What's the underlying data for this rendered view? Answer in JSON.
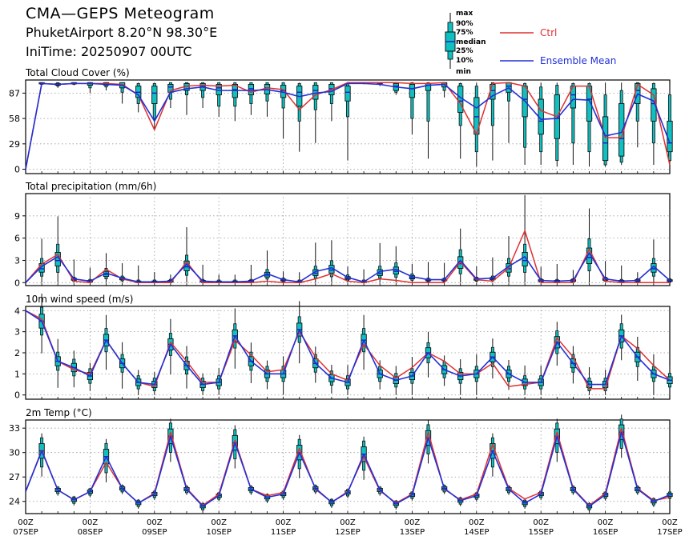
{
  "header": {
    "title": "CMA—GEPS Meteogram",
    "location": "PhuketAirport 8.20°N 98.30°E",
    "init_time": "IniTime: 20250907 00UTC"
  },
  "legend": {
    "box_labels": [
      "max",
      "90%",
      "75%",
      "median",
      "25%",
      "10%",
      "min"
    ],
    "ctrl_label": "Ctrl",
    "mean_label": "Ensemble Mean"
  },
  "colors": {
    "ctrl": "#e03030",
    "mean": "#2030d8",
    "box_fill": "#10c0c0",
    "median": "#1818c0"
  },
  "x_axis": {
    "tick_top": [
      "00Z",
      "00Z",
      "00Z",
      "00Z",
      "00Z",
      "00Z",
      "00Z",
      "00Z",
      "00Z",
      "00Z",
      "00Z"
    ],
    "tick_bottom": [
      "07SEP",
      "08SEP",
      "09SEP",
      "10SEP",
      "11SEP",
      "12SEP",
      "13SEP",
      "14SEP",
      "15SEP",
      "16SEP",
      "17SEP"
    ]
  },
  "chart_data": [
    {
      "type": "box",
      "title": "Total Cloud Cover (%)",
      "yticks": [
        0,
        29,
        58,
        87
      ],
      "ylim": [
        -5,
        102
      ],
      "grid": true,
      "x_step_hours": 6,
      "ctrl": [
        0,
        98,
        97,
        98,
        98,
        98,
        97,
        85,
        45,
        90,
        95,
        96,
        95,
        96,
        88,
        93,
        91,
        68,
        85,
        91,
        99,
        99,
        99,
        99,
        98,
        98,
        99,
        75,
        40,
        98,
        99,
        95,
        67,
        60,
        95,
        95,
        36,
        36,
        97,
        85,
        5
      ],
      "mean": [
        0,
        98,
        97,
        98,
        98,
        97,
        96,
        85,
        55,
        88,
        92,
        94,
        90,
        90,
        90,
        91,
        88,
        83,
        87,
        89,
        98,
        98,
        97,
        94,
        92,
        96,
        97,
        82,
        70,
        84,
        93,
        78,
        57,
        58,
        80,
        79,
        38,
        42,
        86,
        78,
        30
      ],
      "boxes": [
        null,
        {
          "min": 96,
          "p10": 97,
          "p25": 97.5,
          "median": 98,
          "p75": 99,
          "p90": 99,
          "max": 99
        },
        {
          "min": 93,
          "p10": 95,
          "p25": 96,
          "median": 97,
          "p75": 98,
          "p90": 99,
          "max": 99
        },
        {
          "min": 96,
          "p10": 97,
          "p25": 97.5,
          "median": 98,
          "p75": 99,
          "p90": 99,
          "max": 99
        },
        {
          "min": 87,
          "p10": 93,
          "p25": 96,
          "median": 98,
          "p75": 99,
          "p90": 99,
          "max": 99
        },
        {
          "min": 90,
          "p10": 94,
          "p25": 96,
          "median": 97,
          "p75": 99,
          "p90": 99,
          "max": 99
        },
        {
          "min": 75,
          "p10": 88,
          "p25": 93,
          "median": 96,
          "p75": 99,
          "p90": 99,
          "max": 99
        },
        {
          "min": 65,
          "p10": 75,
          "p25": 82,
          "median": 88,
          "p75": 95,
          "p90": 98,
          "max": 99
        },
        {
          "min": 45,
          "p10": 58,
          "p25": 75,
          "median": 87,
          "p75": 95,
          "p90": 98,
          "max": 99
        },
        {
          "min": 70,
          "p10": 80,
          "p25": 88,
          "median": 94,
          "p75": 97,
          "p90": 99,
          "max": 99
        },
        {
          "min": 62,
          "p10": 85,
          "p25": 90,
          "median": 95,
          "p75": 98,
          "p90": 99,
          "max": 99
        },
        {
          "min": 70,
          "p10": 82,
          "p25": 90,
          "median": 95,
          "p75": 98,
          "p90": 99,
          "max": 99
        },
        {
          "min": 60,
          "p10": 72,
          "p25": 85,
          "median": 93,
          "p75": 97,
          "p90": 99,
          "max": 99
        },
        {
          "min": 55,
          "p10": 72,
          "p25": 82,
          "median": 91,
          "p75": 97,
          "p90": 99,
          "max": 99
        },
        {
          "min": 62,
          "p10": 75,
          "p25": 85,
          "median": 92,
          "p75": 97,
          "p90": 99,
          "max": 99
        },
        {
          "min": 60,
          "p10": 78,
          "p25": 86,
          "median": 93,
          "p75": 97,
          "p90": 99,
          "max": 99
        },
        {
          "min": 35,
          "p10": 70,
          "p25": 82,
          "median": 90,
          "p75": 96,
          "p90": 99,
          "max": 99
        },
        {
          "min": 20,
          "p10": 55,
          "p25": 72,
          "median": 88,
          "p75": 95,
          "p90": 98,
          "max": 99
        },
        {
          "min": 30,
          "p10": 68,
          "p25": 80,
          "median": 90,
          "p75": 96,
          "p90": 99,
          "max": 99
        },
        {
          "min": 55,
          "p10": 75,
          "p25": 85,
          "median": 92,
          "p75": 97,
          "p90": 99,
          "max": 99
        },
        {
          "min": 10,
          "p10": 60,
          "p25": 78,
          "median": 88,
          "p75": 95,
          "p90": 98,
          "max": 99
        },
        {
          "min": 97,
          "p10": 98,
          "p25": 98.5,
          "median": 99,
          "p75": 99,
          "p90": 99,
          "max": 99
        },
        {
          "min": 95,
          "p10": 97,
          "p25": 98,
          "median": 98.5,
          "p75": 99,
          "p90": 99,
          "max": 99
        },
        {
          "min": 85,
          "p10": 88,
          "p25": 90,
          "median": 95,
          "p75": 98,
          "p90": 99,
          "max": 99
        },
        {
          "min": 40,
          "p10": 58,
          "p25": 82,
          "median": 92,
          "p75": 97,
          "p90": 99,
          "max": 99
        },
        {
          "min": 12,
          "p10": 55,
          "p25": 90,
          "median": 96,
          "p75": 98,
          "p90": 99,
          "max": 99
        },
        {
          "min": 82,
          "p10": 90,
          "p25": 94,
          "median": 97,
          "p75": 99,
          "p90": 99,
          "max": 99
        },
        {
          "min": 12,
          "p10": 50,
          "p25": 65,
          "median": 78,
          "p75": 95,
          "p90": 98,
          "max": 99
        },
        {
          "min": 3,
          "p10": 20,
          "p25": 40,
          "median": 60,
          "p75": 82,
          "p90": 95,
          "max": 99
        },
        {
          "min": 10,
          "p10": 50,
          "p25": 80,
          "median": 90,
          "p75": 97,
          "p90": 99,
          "max": 99
        },
        {
          "min": 30,
          "p10": 78,
          "p25": 88,
          "median": 95,
          "p75": 99,
          "p90": 99,
          "max": 99
        },
        {
          "min": 5,
          "p10": 25,
          "p25": 60,
          "median": 80,
          "p75": 95,
          "p90": 98,
          "max": 99
        },
        {
          "min": 5,
          "p10": 20,
          "p25": 40,
          "median": 55,
          "p75": 80,
          "p90": 94,
          "max": 99
        },
        {
          "min": 3,
          "p10": 10,
          "p25": 35,
          "median": 58,
          "p75": 85,
          "p90": 96,
          "max": 99
        },
        {
          "min": 5,
          "p10": 30,
          "p25": 70,
          "median": 85,
          "p75": 95,
          "p90": 98,
          "max": 99
        },
        {
          "min": 3,
          "p10": 20,
          "p25": 55,
          "median": 80,
          "p75": 95,
          "p90": 98,
          "max": 99
        },
        {
          "min": 3,
          "p10": 5,
          "p25": 10,
          "median": 30,
          "p75": 60,
          "p90": 85,
          "max": 99
        },
        {
          "min": 5,
          "p10": 8,
          "p25": 15,
          "median": 35,
          "p75": 75,
          "p90": 90,
          "max": 99
        },
        {
          "min": 25,
          "p10": 55,
          "p25": 75,
          "median": 90,
          "p75": 98,
          "p90": 99,
          "max": 99
        },
        {
          "min": 5,
          "p10": 30,
          "p25": 55,
          "median": 75,
          "p75": 92,
          "p90": 98,
          "max": 99
        },
        {
          "min": 3,
          "p10": 10,
          "p25": 20,
          "median": 30,
          "p75": 55,
          "p90": 85,
          "max": 98
        }
      ]
    },
    {
      "type": "box",
      "title": "Total precipitation (mm/6h)",
      "yticks": [
        0,
        3,
        6,
        9
      ],
      "ylim": [
        -0.4,
        12
      ],
      "grid": true,
      "x_step_hours": 6,
      "ctrl": [
        0,
        2.5,
        3.8,
        0.2,
        0,
        1.8,
        0.5,
        0,
        0,
        0,
        2.8,
        0,
        0,
        0,
        0,
        0.2,
        0,
        0,
        0.5,
        1.2,
        0.2,
        0,
        0.5,
        0.3,
        0,
        0,
        0,
        2.8,
        0.4,
        0.2,
        2.0,
        7.0,
        0,
        0,
        0,
        4.5,
        0.2,
        0,
        0,
        0,
        0
      ],
      "mean": [
        0,
        2.2,
        3.5,
        0.5,
        0.2,
        1.3,
        0.6,
        0.1,
        0.1,
        0.2,
        2.5,
        0.2,
        0.1,
        0.1,
        0.2,
        1.2,
        0.4,
        0.1,
        1.5,
        2.0,
        0.7,
        0.1,
        1.5,
        1.8,
        0.8,
        0.4,
        0.4,
        3.0,
        0.5,
        0.6,
        2.2,
        3.5,
        0.3,
        0.2,
        0.3,
        4.0,
        0.5,
        0.2,
        0.3,
        2.2,
        0.3
      ]
    },
    {
      "type": "box",
      "title": "10m wind speed (m/s)",
      "yticks": [
        0,
        1,
        2,
        3,
        4
      ],
      "ylim": [
        -0.2,
        4.2
      ],
      "grid": true,
      "x_step_hours": 6,
      "ctrl": [
        4.0,
        3.6,
        1.6,
        1.2,
        1.0,
        2.6,
        1.5,
        0.6,
        0.4,
        2.5,
        1.6,
        0.6,
        0.6,
        2.6,
        1.9,
        1.1,
        1.2,
        3.0,
        1.8,
        1.0,
        0.7,
        2.4,
        1.4,
        0.8,
        1.3,
        2.0,
        1.6,
        1.0,
        1.0,
        1.5,
        0.4,
        0.5,
        0.6,
        2.7,
        1.8,
        0.3,
        0.3,
        2.8,
        2.2,
        1.4,
        0.7
      ],
      "mean": [
        4.0,
        3.5,
        1.6,
        1.3,
        0.9,
        2.6,
        1.5,
        0.6,
        0.5,
        2.4,
        1.4,
        0.5,
        0.6,
        2.8,
        1.6,
        1.0,
        1.0,
        3.1,
        1.5,
        0.8,
        0.6,
        2.6,
        1.0,
        0.7,
        0.9,
        2.0,
        1.2,
        0.9,
        1.0,
        1.8,
        1.0,
        0.6,
        0.6,
        2.5,
        1.5,
        0.5,
        0.5,
        2.8,
        1.8,
        1.0,
        0.7
      ]
    },
    {
      "type": "box",
      "title": "2m Temp (°C)",
      "yticks": [
        24,
        27,
        30,
        33
      ],
      "ylim": [
        22.5,
        34
      ],
      "grid": true,
      "x_step_hours": 6,
      "ctrl": [
        25.2,
        30.3,
        25.4,
        24.2,
        25.2,
        28.8,
        25.6,
        23.8,
        25.0,
        32.5,
        25.6,
        23.5,
        24.9,
        31.5,
        25.5,
        24.7,
        25.1,
        30.5,
        25.5,
        23.9,
        25.2,
        29.5,
        25.3,
        23.8,
        24.9,
        32.5,
        25.5,
        24.2,
        24.9,
        31.0,
        25.6,
        24.3,
        25.1,
        32.5,
        25.6,
        23.5,
        25.0,
        33.0,
        25.6,
        24.1,
        24.5
      ],
      "mean": [
        25.2,
        30.2,
        25.4,
        24.2,
        25.2,
        29.5,
        25.6,
        23.8,
        24.9,
        32.0,
        25.5,
        23.4,
        24.7,
        31.2,
        25.5,
        24.5,
        24.9,
        30.0,
        25.6,
        23.9,
        25.1,
        29.8,
        25.4,
        23.7,
        24.8,
        31.8,
        25.6,
        24.1,
        24.7,
        30.2,
        25.5,
        23.8,
        24.9,
        32.0,
        25.5,
        23.4,
        24.8,
        32.5,
        25.5,
        24.0,
        24.8
      ]
    }
  ]
}
